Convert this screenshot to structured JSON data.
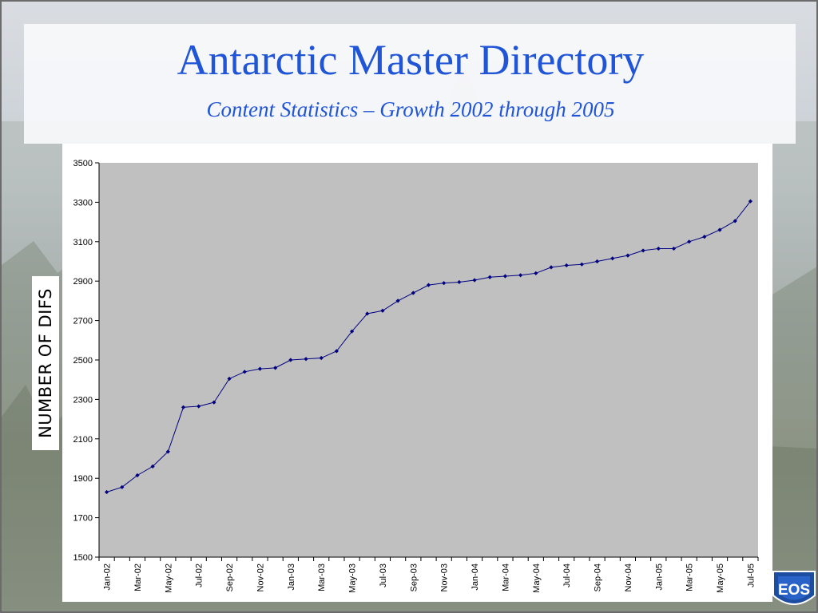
{
  "slide": {
    "title": "Antarctic Master Directory",
    "subtitle": "Content Statistics – Growth 2002 through 2005",
    "logo_text": "EOS",
    "colors": {
      "title": "#1f55d6",
      "plot_area": "#c0c0c0",
      "series": "#000080"
    }
  },
  "chart_data": {
    "type": "line",
    "title": "",
    "xlabel": "",
    "ylabel": "NUMBER OF DIFS",
    "ylim": [
      1500,
      3500
    ],
    "yticks": [
      1500,
      1700,
      1900,
      2100,
      2300,
      2500,
      2700,
      2900,
      3100,
      3300,
      3500
    ],
    "grid": false,
    "legend": "none",
    "x_tick_labels": [
      "Jan-02",
      "Mar-02",
      "May-02",
      "Jul-02",
      "Sep-02",
      "Nov-02",
      "Jan-03",
      "Mar-03",
      "May-03",
      "Jul-03",
      "Sep-03",
      "Nov-03",
      "Jan-04",
      "Mar-04",
      "May-04",
      "Jul-04",
      "Sep-04",
      "Nov-04",
      "Jan-05",
      "Mar-05",
      "May-05",
      "Jul-05"
    ],
    "categories": [
      "Jan-02",
      "Feb-02",
      "Mar-02",
      "Apr-02",
      "May-02",
      "Jun-02",
      "Jul-02",
      "Aug-02",
      "Sep-02",
      "Oct-02",
      "Nov-02",
      "Dec-02",
      "Jan-03",
      "Feb-03",
      "Mar-03",
      "Apr-03",
      "May-03",
      "Jun-03",
      "Jul-03",
      "Aug-03",
      "Sep-03",
      "Oct-03",
      "Nov-03",
      "Dec-03",
      "Jan-04",
      "Feb-04",
      "Mar-04",
      "Apr-04",
      "May-04",
      "Jun-04",
      "Jul-04",
      "Aug-04",
      "Sep-04",
      "Oct-04",
      "Nov-04",
      "Dec-04",
      "Jan-05",
      "Feb-05",
      "Mar-05",
      "Apr-05",
      "May-05",
      "Jun-05",
      "Jul-05"
    ],
    "series": [
      {
        "name": "",
        "values": [
          1830,
          1855,
          1915,
          1960,
          2035,
          2260,
          2265,
          2285,
          2405,
          2440,
          2455,
          2460,
          2500,
          2505,
          2510,
          2545,
          2645,
          2735,
          2750,
          2800,
          2840,
          2880,
          2890,
          2895,
          2905,
          2920,
          2925,
          2930,
          2940,
          2970,
          2980,
          2985,
          3000,
          3015,
          3030,
          3055,
          3065,
          3065,
          3100,
          3125,
          3160,
          3205,
          3305
        ]
      }
    ]
  }
}
